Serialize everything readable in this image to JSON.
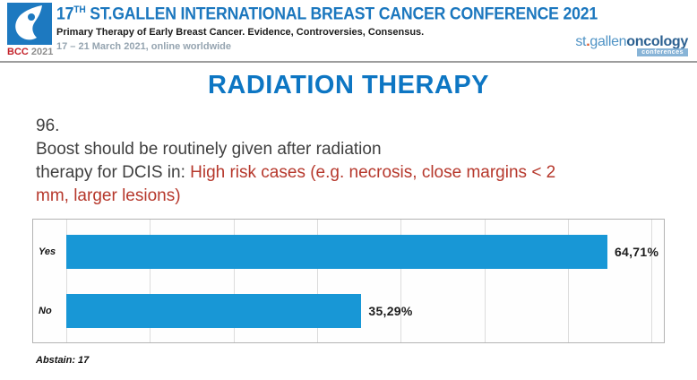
{
  "header": {
    "badge": {
      "bcc": "BCC",
      "year": "2021"
    },
    "title_prefix": "17",
    "title_sup": "TH",
    "title_rest": " ST.GALLEN INTERNATIONAL BREAST CANCER CONFERENCE 2021",
    "subtitle": "Primary Therapy of Early Breast Cancer. Evidence, Controversies, Consensus.",
    "dates": "17 – 21 March 2021, online worldwide",
    "logo_right": {
      "part_st": "st",
      "dot": ".",
      "part_gallen": "gallen",
      "part_oncology": "oncology",
      "badge": "conferences"
    }
  },
  "slide": {
    "title": "RADIATION THERAPY",
    "question_lines": [
      [
        {
          "t": "96.",
          "c": "dark"
        }
      ],
      [
        {
          "t": "Boost should be routinely given after radiation",
          "c": "dark"
        }
      ],
      [
        {
          "t": "therapy for DCIS in: ",
          "c": "dark"
        },
        {
          "t": "High risk cases (e.g. necrosis, close margins < 2",
          "c": "red"
        }
      ],
      [
        {
          "t": "mm, larger lesions)",
          "c": "red"
        }
      ]
    ]
  },
  "chart_data": {
    "type": "bar",
    "orientation": "horizontal",
    "title": "Boost should be routinely given after radiation therapy for DCIS in: High risk cases (e.g. necrosis, close margins < 2 mm, larger lesions)",
    "categories": [
      "Yes",
      "No"
    ],
    "values": [
      64.71,
      35.29
    ],
    "value_labels": [
      "64,71%",
      "35,29%"
    ],
    "xlabel": "",
    "ylabel": "",
    "xlim": [
      0,
      72
    ],
    "gridline_step_percent": 10,
    "grid": true,
    "legend": false,
    "bar_color": "#1897d6",
    "abstain_count": 17
  },
  "footer": {
    "abstain": "Abstain: 17"
  },
  "colors": {
    "header_title_blue": "#1b77be",
    "slide_title_blue": "#0d76c3",
    "question_red": "#b6382c",
    "question_dark": "#3f3f3f",
    "bar_blue": "#1897d6",
    "bcc_red": "#c4242c",
    "sg_light_blue": "#4f93c5",
    "sg_dark_blue": "#2d6191",
    "sg_badge_blue": "#88b4d7",
    "sg_dot_orange": "#dd5527"
  }
}
